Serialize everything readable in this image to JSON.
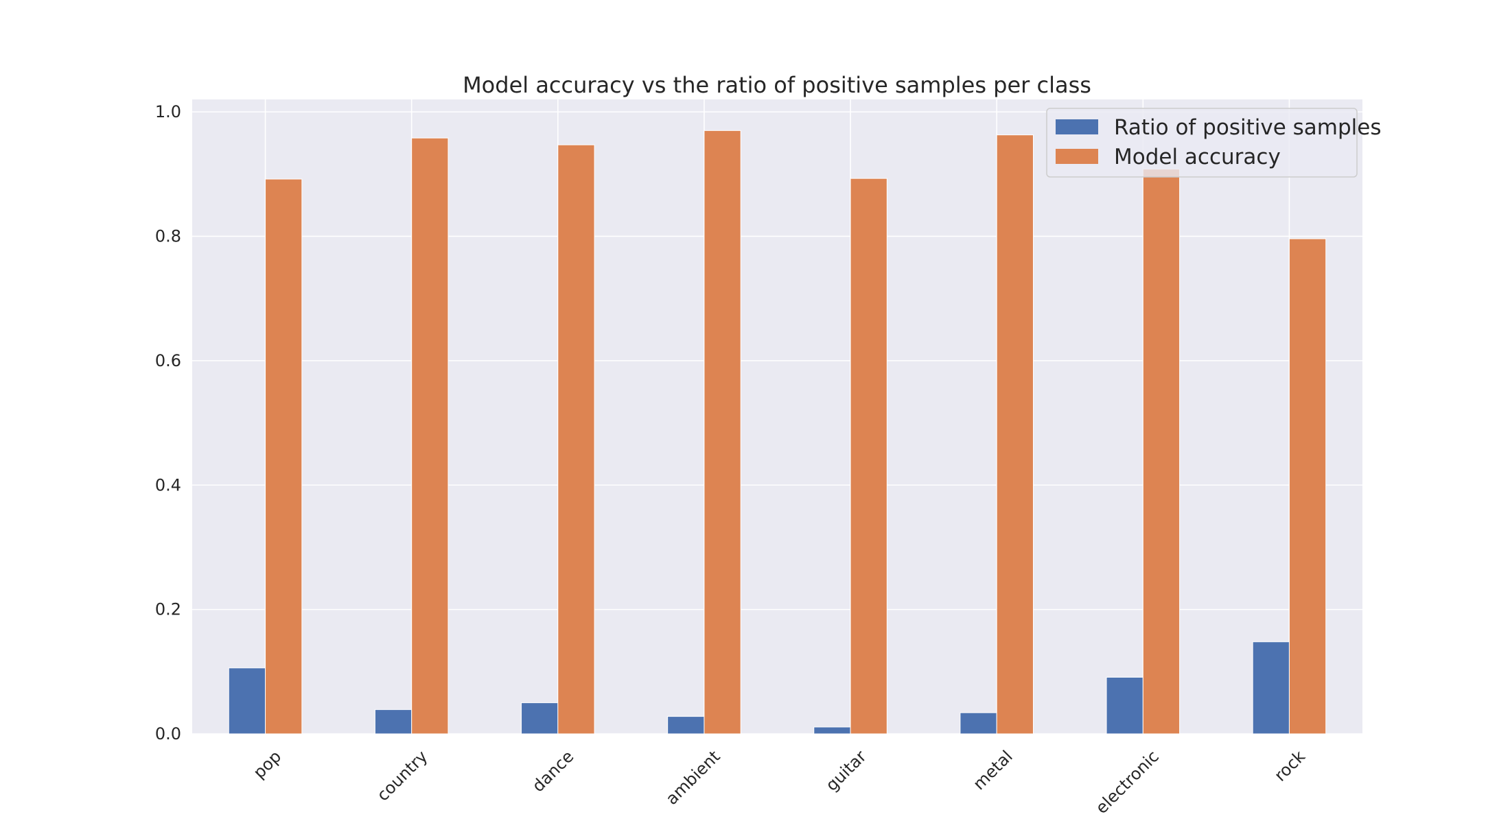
{
  "chart_data": {
    "type": "bar",
    "title": "Model accuracy vs the ratio of positive samples per class",
    "xlabel": "",
    "ylabel": "",
    "categories": [
      "pop",
      "country",
      "dance",
      "ambient",
      "guitar",
      "metal",
      "electronic",
      "rock"
    ],
    "series": [
      {
        "name": "Ratio of positive samples",
        "color": "#4c72b0",
        "values": [
          0.106,
          0.039,
          0.05,
          0.028,
          0.011,
          0.034,
          0.091,
          0.148
        ]
      },
      {
        "name": "Model accuracy",
        "color": "#dd8452",
        "values": [
          0.892,
          0.958,
          0.947,
          0.97,
          0.893,
          0.963,
          0.908,
          0.796
        ]
      }
    ],
    "ylim": [
      0,
      1.02
    ],
    "yticks": [
      "0.0",
      "0.2",
      "0.4",
      "0.6",
      "0.8",
      "1.0"
    ],
    "grid": true,
    "legend_position": "top-right",
    "plot_background": "#eaeaf2"
  }
}
